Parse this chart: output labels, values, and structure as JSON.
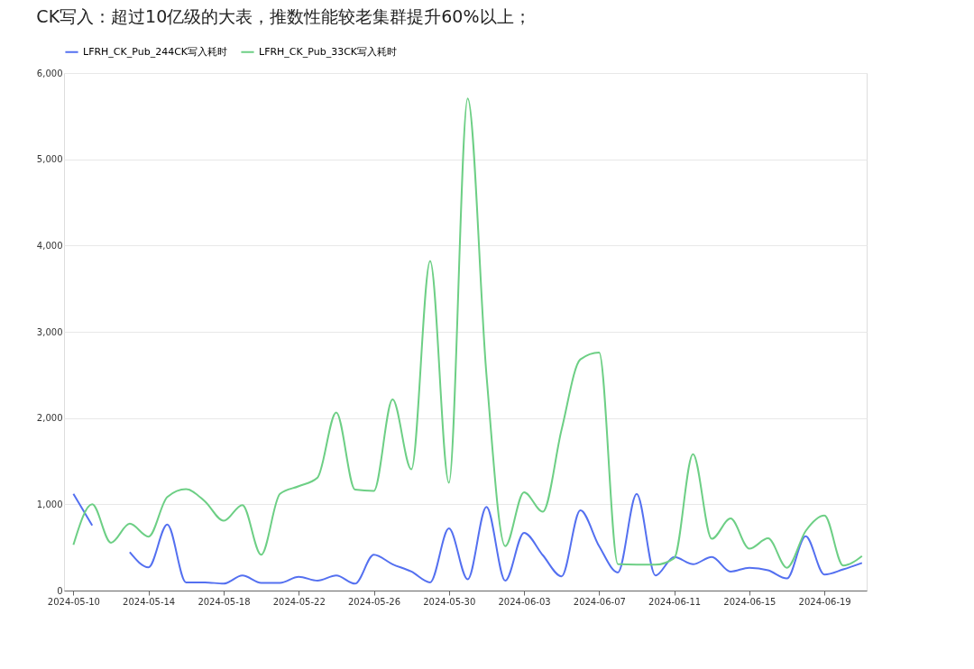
{
  "chart_data": {
    "type": "line",
    "title": "CK写入：超过10亿级的大表，推数性能较老集群提升60%以上；",
    "x": [
      "2024-05-10",
      "2024-05-11",
      "2024-05-12",
      "2024-05-13",
      "2024-05-14",
      "2024-05-15",
      "2024-05-16",
      "2024-05-17",
      "2024-05-18",
      "2024-05-19",
      "2024-05-20",
      "2024-05-21",
      "2024-05-22",
      "2024-05-23",
      "2024-05-24",
      "2024-05-25",
      "2024-05-26",
      "2024-05-27",
      "2024-05-28",
      "2024-05-29",
      "2024-05-30",
      "2024-05-31",
      "2024-06-01",
      "2024-06-02",
      "2024-06-03",
      "2024-06-04",
      "2024-06-05",
      "2024-06-06",
      "2024-06-07",
      "2024-06-08",
      "2024-06-09",
      "2024-06-10",
      "2024-06-11",
      "2024-06-12",
      "2024-06-13",
      "2024-06-14",
      "2024-06-15",
      "2024-06-16",
      "2024-06-17",
      "2024-06-18",
      "2024-06-19",
      "2024-06-20",
      "2024-06-21"
    ],
    "series": [
      {
        "name": "LFRH_CK_Pub_244CK写入耗时",
        "color": "#5470f0",
        "values": [
          1120,
          755,
          null,
          445,
          270,
          765,
          95,
          95,
          80,
          175,
          90,
          90,
          160,
          115,
          175,
          80,
          415,
          305,
          220,
          95,
          720,
          130,
          970,
          115,
          670,
          410,
          165,
          930,
          515,
          210,
          1120,
          175,
          390,
          305,
          390,
          220,
          265,
          235,
          140,
          630,
          185,
          245,
          320
        ]
      },
      {
        "name": "LFRH_CK_Pub_33CK写入耗时",
        "color": "#6dcf85",
        "values": [
          530,
          1000,
          555,
          775,
          625,
          1085,
          1175,
          1035,
          810,
          990,
          415,
          1120,
          1210,
          1310,
          2065,
          1170,
          1155,
          2215,
          1405,
          3820,
          1250,
          5705,
          2500,
          515,
          1140,
          915,
          1865,
          2680,
          2760,
          305,
          300,
          300,
          375,
          1580,
          600,
          835,
          485,
          605,
          265,
          690,
          870,
          290,
          400
        ]
      }
    ],
    "xlim": [
      "2024-05-09T12:00",
      "2024-06-21T06:00"
    ],
    "xticks": [
      {
        "value": "2024-05-10",
        "label": "2024-05-10"
      },
      {
        "value": "2024-05-14",
        "label": "2024-05-14"
      },
      {
        "value": "2024-05-18",
        "label": "2024-05-18"
      },
      {
        "value": "2024-05-22",
        "label": "2024-05-22"
      },
      {
        "value": "2024-05-26",
        "label": "2024-05-26"
      },
      {
        "value": "2024-05-30",
        "label": "2024-05-30"
      },
      {
        "value": "2024-06-03",
        "label": "2024-06-03"
      },
      {
        "value": "2024-06-07",
        "label": "2024-06-07"
      },
      {
        "value": "2024-06-11",
        "label": "2024-06-11"
      },
      {
        "value": "2024-06-15",
        "label": "2024-06-15"
      },
      {
        "value": "2024-06-19",
        "label": "2024-06-19"
      }
    ],
    "ylim": [
      0,
      6000
    ],
    "yticks": [
      {
        "value": 0,
        "label": "0"
      },
      {
        "value": 1000,
        "label": "1,000"
      },
      {
        "value": 2000,
        "label": "2,000"
      },
      {
        "value": 3000,
        "label": "3,000"
      },
      {
        "value": 4000,
        "label": "4,000"
      },
      {
        "value": 5000,
        "label": "5,000"
      },
      {
        "value": 6000,
        "label": "6,000"
      }
    ],
    "grid": "y",
    "legend": "top",
    "marker": "none",
    "line_style": "solid"
  }
}
